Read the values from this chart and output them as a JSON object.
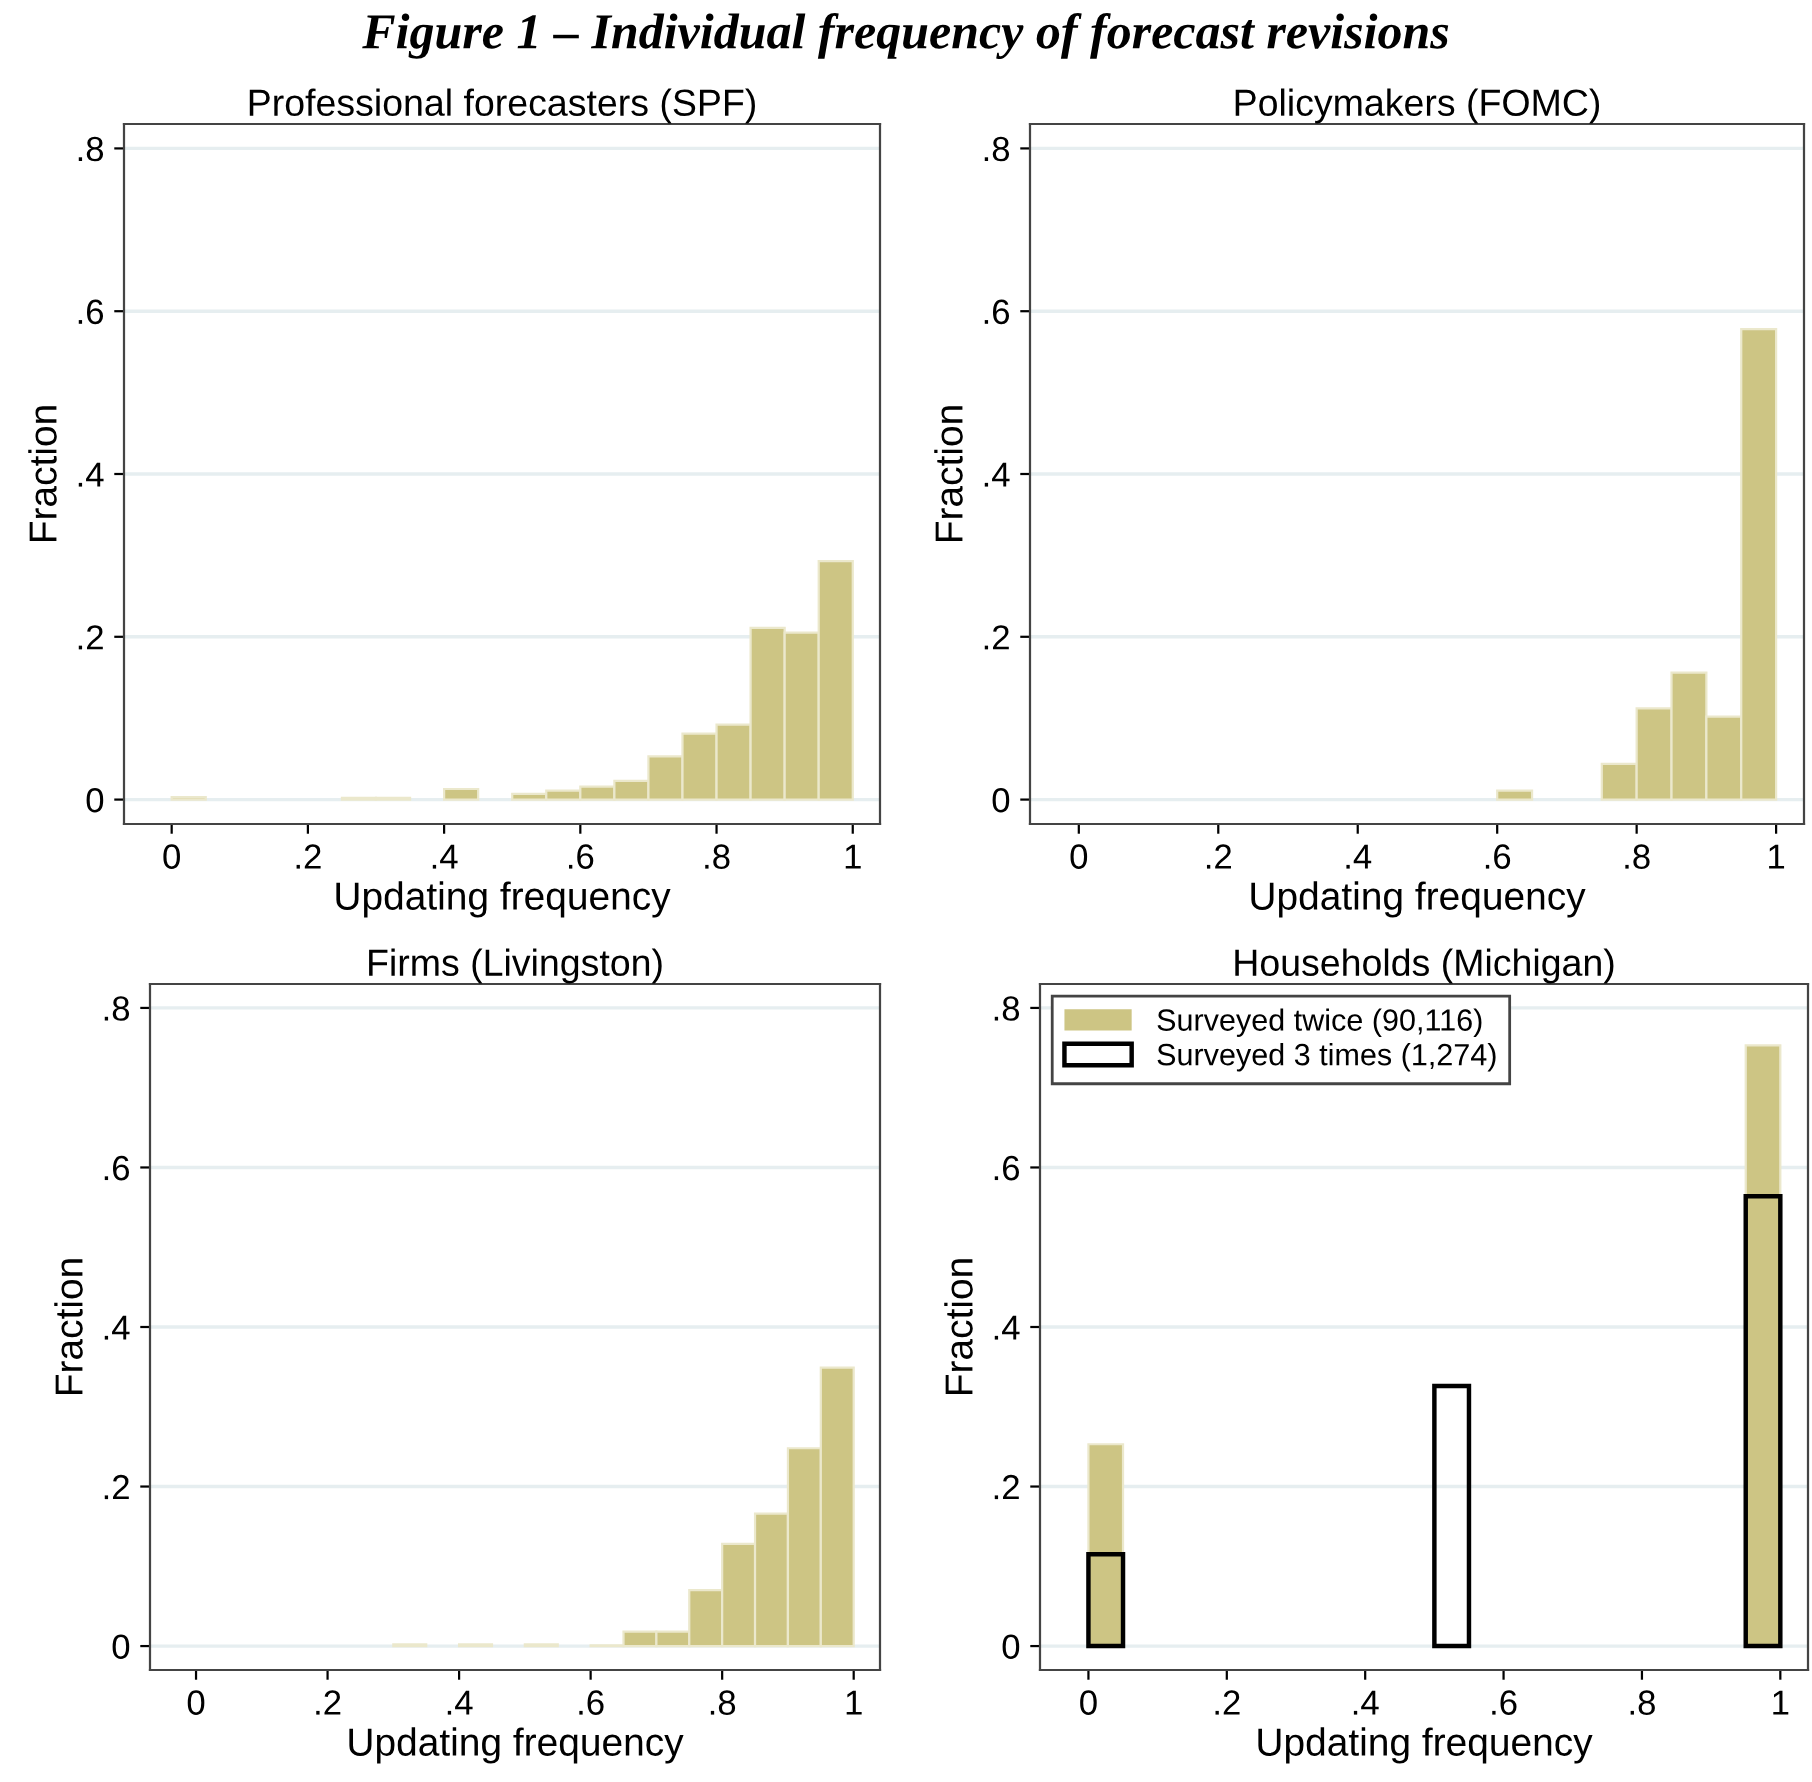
{
  "chart_data": [
    {
      "type": "histogram",
      "title": "Professional forecasters (SPF)",
      "xlabel": "Updating frequency",
      "ylabel": "Fraction",
      "annotations": [
        "Figure 1 – Individual frequency of forecast revisions"
      ],
      "bins": [
        0,
        0.05,
        0.1,
        0.15,
        0.2,
        0.25,
        0.3,
        0.35,
        0.4,
        0.45,
        0.5,
        0.55,
        0.6,
        0.65,
        0.7,
        0.75,
        0.8,
        0.85,
        0.9,
        0.95,
        1
      ],
      "color": "#cdc584",
      "values": [
        0.003,
        0,
        0,
        0,
        0,
        0.002,
        0.002,
        0,
        0.013,
        0,
        0.007,
        0.011,
        0.016,
        0.023,
        0.053,
        0.081,
        0.092,
        0.211,
        0.205,
        0.293
      ],
      "xlim": [
        -0.07,
        1.04
      ],
      "ylim": [
        -0.03,
        0.83
      ],
      "xticks": [
        0,
        {
          "value": 0.2,
          "label": ".2"
        },
        {
          "value": 0.4,
          "label": ".4"
        },
        {
          "value": 0.6,
          "label": ".6"
        },
        {
          "value": 0.8,
          "label": ".8"
        },
        1
      ],
      "yticks": [
        0,
        {
          "value": 0.2,
          "label": ".2"
        },
        {
          "value": 0.4,
          "label": ".4"
        },
        {
          "value": 0.6,
          "label": ".6"
        },
        {
          "value": 0.8,
          "label": ".8"
        }
      ],
      "grid": "y",
      "legend": false
    },
    {
      "type": "histogram",
      "title": "Policymakers (FOMC)",
      "xlabel": "Updating frequency",
      "ylabel": "Fraction",
      "bins": [
        0,
        0.05,
        0.1,
        0.15,
        0.2,
        0.25,
        0.3,
        0.35,
        0.4,
        0.45,
        0.5,
        0.55,
        0.6,
        0.65,
        0.7,
        0.75,
        0.8,
        0.85,
        0.9,
        0.95,
        1
      ],
      "color": "#cdc584",
      "values": [
        0,
        0,
        0,
        0,
        0,
        0,
        0,
        0,
        0,
        0,
        0,
        0,
        0.011,
        0,
        0,
        0.044,
        0.112,
        0.156,
        0.102,
        0.578
      ],
      "xlim": [
        -0.07,
        1.04
      ],
      "ylim": [
        -0.03,
        0.83
      ],
      "xticks": [
        0,
        {
          "value": 0.2,
          "label": ".2"
        },
        {
          "value": 0.4,
          "label": ".4"
        },
        {
          "value": 0.6,
          "label": ".6"
        },
        {
          "value": 0.8,
          "label": ".8"
        },
        1
      ],
      "yticks": [
        0,
        {
          "value": 0.2,
          "label": ".2"
        },
        {
          "value": 0.4,
          "label": ".4"
        },
        {
          "value": 0.6,
          "label": ".6"
        },
        {
          "value": 0.8,
          "label": ".8"
        }
      ],
      "grid": "y",
      "legend": false
    },
    {
      "type": "histogram",
      "title": "Firms (Livingston)",
      "xlabel": "Updating frequency",
      "ylabel": "Fraction",
      "bins": [
        0,
        0.05,
        0.1,
        0.15,
        0.2,
        0.25,
        0.3,
        0.35,
        0.4,
        0.45,
        0.5,
        0.55,
        0.6,
        0.65,
        0.7,
        0.75,
        0.8,
        0.85,
        0.9,
        0.95,
        1
      ],
      "color": "#cdc584",
      "values": [
        0,
        0,
        0,
        0,
        0,
        0,
        0.002,
        0,
        0.002,
        0,
        0.002,
        0,
        0.001,
        0.018,
        0.018,
        0.07,
        0.128,
        0.166,
        0.248,
        0.349
      ],
      "xlim": [
        -0.07,
        1.04
      ],
      "ylim": [
        -0.03,
        0.83
      ],
      "xticks": [
        0,
        {
          "value": 0.2,
          "label": ".2"
        },
        {
          "value": 0.4,
          "label": ".4"
        },
        {
          "value": 0.6,
          "label": ".6"
        },
        {
          "value": 0.8,
          "label": ".8"
        },
        1
      ],
      "yticks": [
        0,
        {
          "value": 0.2,
          "label": ".2"
        },
        {
          "value": 0.4,
          "label": ".4"
        },
        {
          "value": 0.6,
          "label": ".6"
        },
        {
          "value": 0.8,
          "label": ".8"
        }
      ],
      "grid": "y",
      "legend": false
    },
    {
      "type": "histogram",
      "title": "Households (Michigan)",
      "xlabel": "Updating frequency",
      "ylabel": "Fraction",
      "bins": [
        0,
        0.05,
        0.1,
        0.15,
        0.2,
        0.25,
        0.3,
        0.35,
        0.4,
        0.45,
        0.5,
        0.55,
        0.6,
        0.65,
        0.7,
        0.75,
        0.8,
        0.85,
        0.9,
        0.95,
        1
      ],
      "series": [
        {
          "name": "Surveyed twice (90,116)",
          "color": "#cdc584",
          "values": [
            0.253,
            0,
            0,
            0,
            0,
            0,
            0,
            0,
            0,
            0,
            0,
            0,
            0,
            0,
            0,
            0,
            0,
            0,
            0,
            0.753
          ]
        },
        {
          "name": "Surveyed 3 times (1,274)",
          "color": "#000000",
          "values": [
            0.115,
            0,
            0,
            0,
            0,
            0,
            0,
            0,
            0,
            0,
            0.326,
            0,
            0,
            0,
            0,
            0,
            0,
            0,
            0,
            0.564
          ]
        }
      ],
      "xlim": [
        -0.07,
        1.04
      ],
      "ylim": [
        -0.03,
        0.83
      ],
      "xticks": [
        0,
        {
          "value": 0.2,
          "label": ".2"
        },
        {
          "value": 0.4,
          "label": ".4"
        },
        {
          "value": 0.6,
          "label": ".6"
        },
        {
          "value": 0.8,
          "label": ".8"
        },
        1
      ],
      "yticks": [
        0,
        {
          "value": 0.2,
          "label": ".2"
        },
        {
          "value": 0.4,
          "label": ".4"
        },
        {
          "value": 0.6,
          "label": ".6"
        },
        {
          "value": 0.8,
          "label": ".8"
        }
      ],
      "grid": "y",
      "legend": "top left"
    }
  ]
}
